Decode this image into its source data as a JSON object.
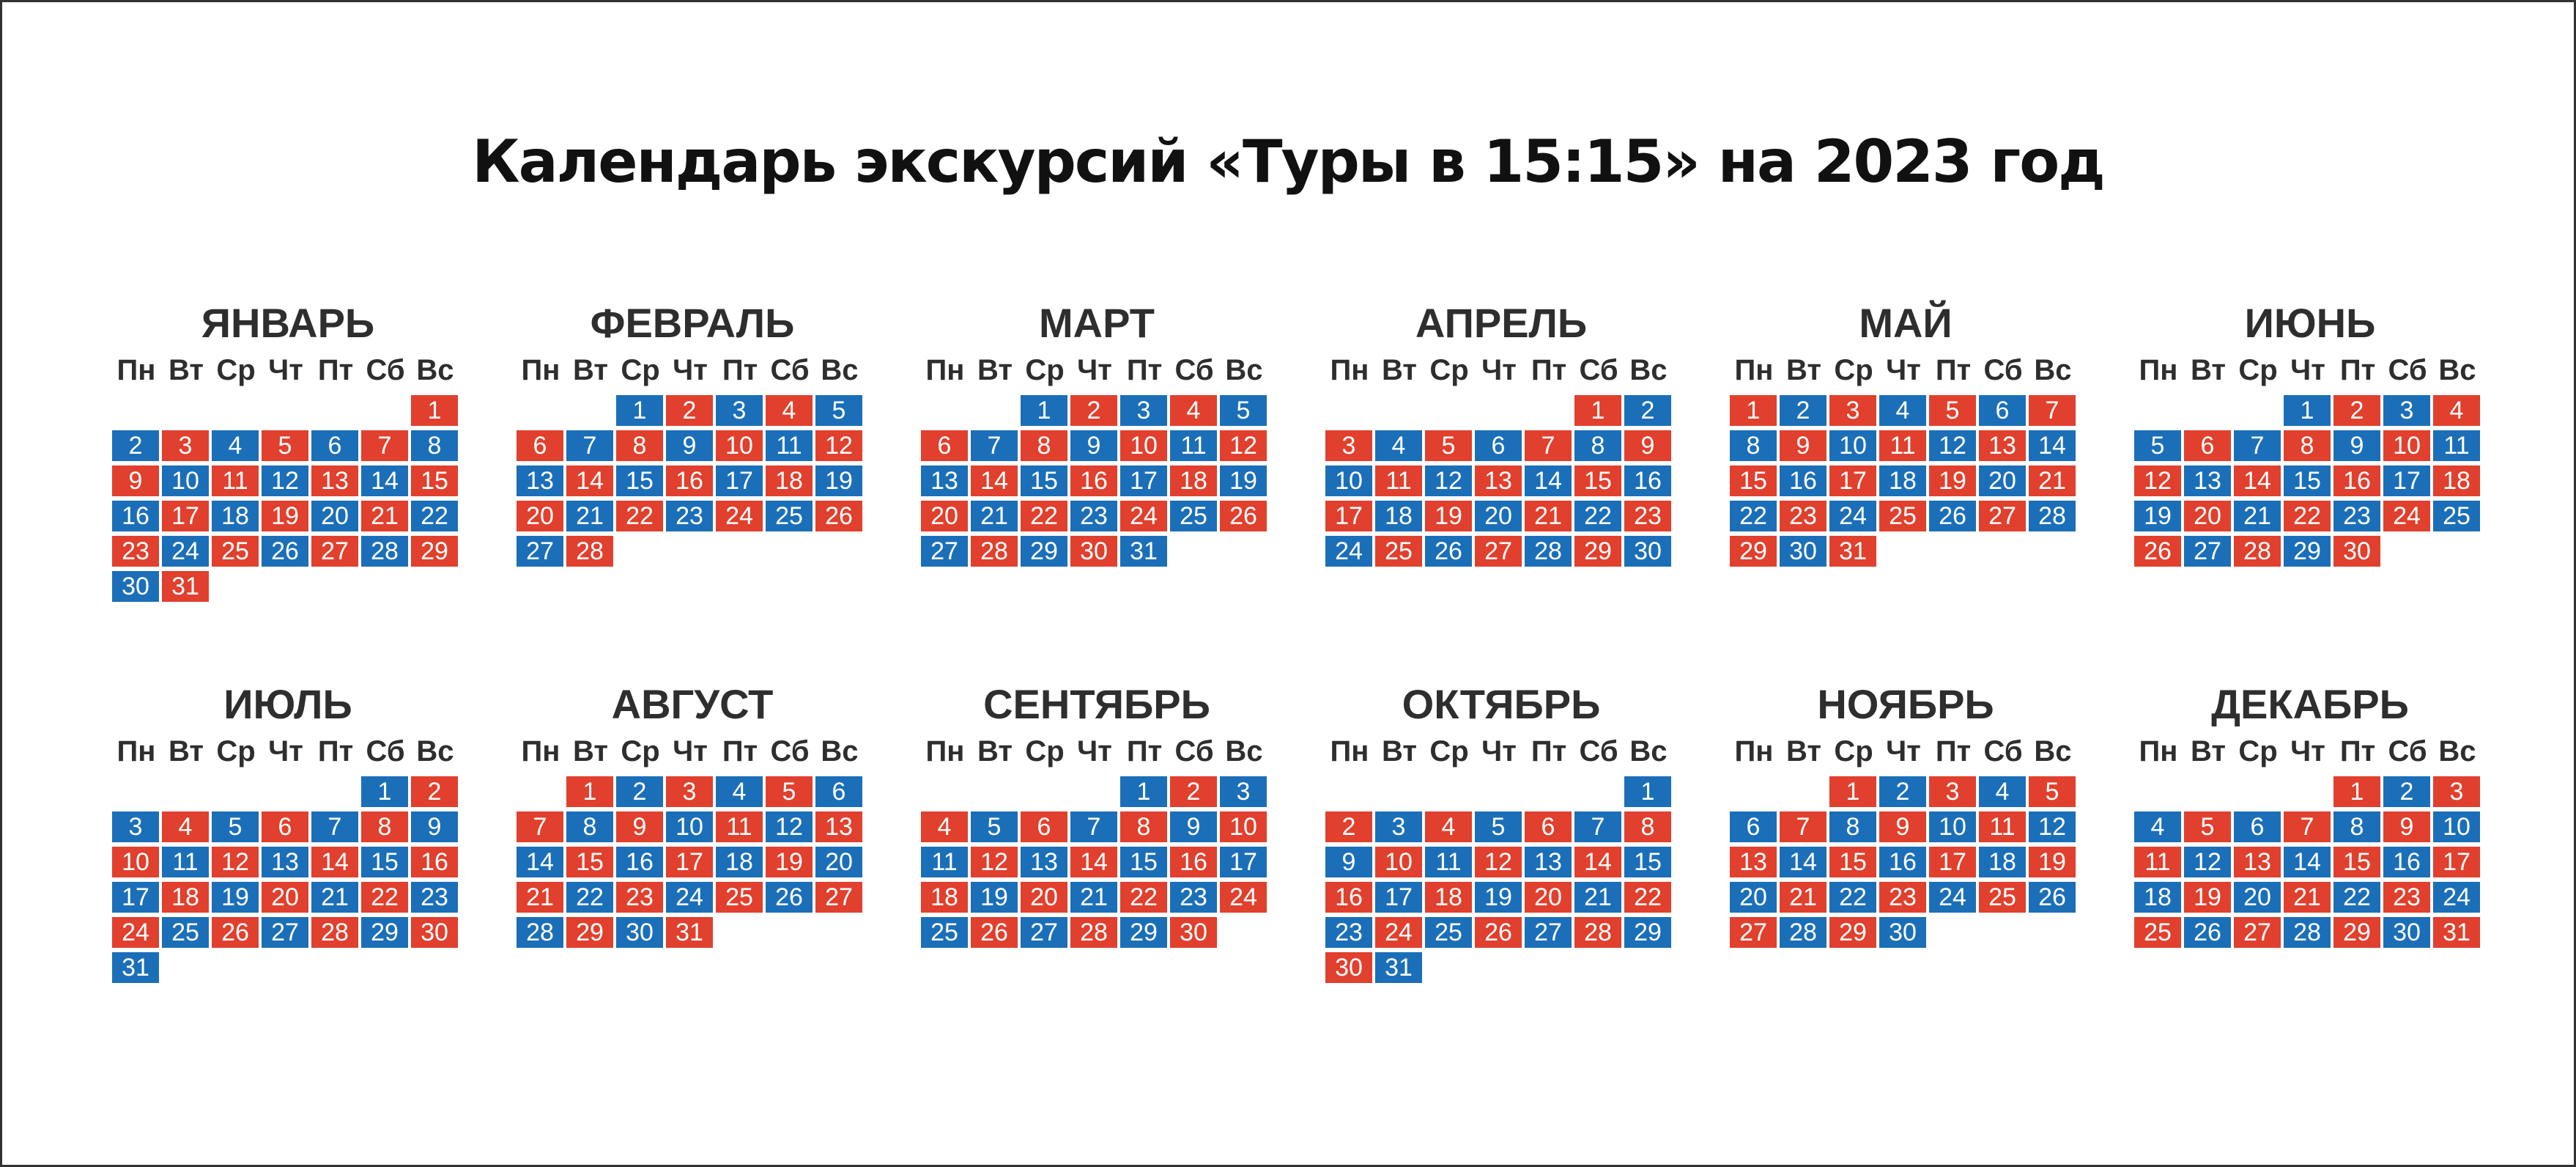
{
  "title": "Календарь экскурсий «Туры в 15:15» на 2023 год",
  "weekdays": [
    "Пн",
    "Вт",
    "Ср",
    "Чт",
    "Пт",
    "Сб",
    "Вс"
  ],
  "colors": {
    "blue": "#1b6fb8",
    "red": "#e0402d"
  },
  "months": [
    {
      "name": "ЯНВАРЬ",
      "days": 31,
      "first_weekday": 7,
      "first_color": "red"
    },
    {
      "name": "ФЕВРАЛЬ",
      "days": 28,
      "first_weekday": 3,
      "first_color": "blue"
    },
    {
      "name": "МАРТ",
      "days": 31,
      "first_weekday": 3,
      "first_color": "blue"
    },
    {
      "name": "АПРЕЛЬ",
      "days": 30,
      "first_weekday": 6,
      "first_color": "red"
    },
    {
      "name": "МАЙ",
      "days": 31,
      "first_weekday": 1,
      "first_color": "red"
    },
    {
      "name": "ИЮНЬ",
      "days": 30,
      "first_weekday": 4,
      "first_color": "blue"
    },
    {
      "name": "ИЮЛЬ",
      "days": 31,
      "first_weekday": 6,
      "first_color": "blue"
    },
    {
      "name": "АВГУСТ",
      "days": 31,
      "first_weekday": 2,
      "first_color": "red"
    },
    {
      "name": "СЕНТЯБРЬ",
      "days": 30,
      "first_weekday": 5,
      "first_color": "blue"
    },
    {
      "name": "ОКТЯБРЬ",
      "days": 31,
      "first_weekday": 7,
      "first_color": "blue"
    },
    {
      "name": "НОЯБРЬ",
      "days": 30,
      "first_weekday": 3,
      "first_color": "red"
    },
    {
      "name": "ДЕКАБРЬ",
      "days": 31,
      "first_weekday": 5,
      "first_color": "red"
    }
  ]
}
